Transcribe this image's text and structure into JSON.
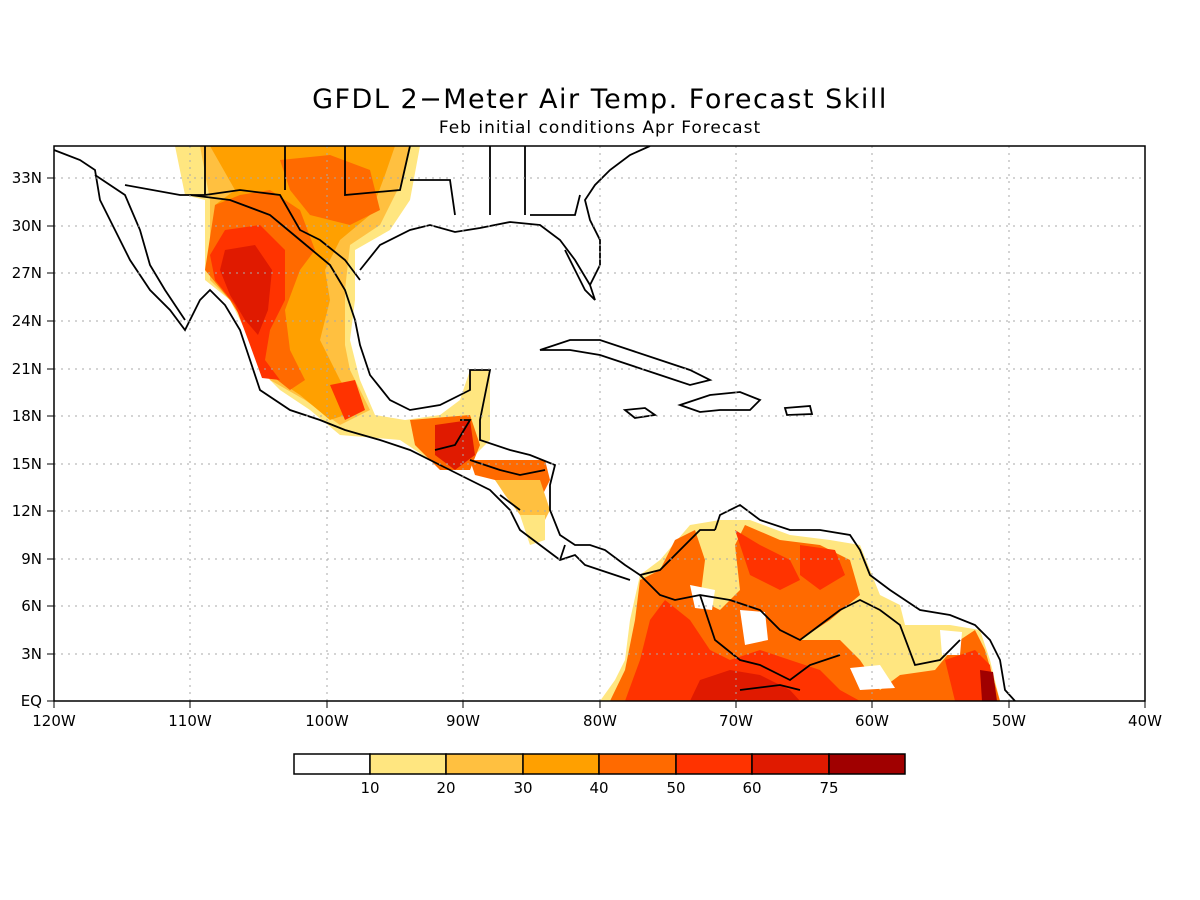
{
  "map": {
    "title": "GFDL 2−Meter Air Temp. Forecast Skill",
    "subtitle": "Feb initial conditions  Apr Forecast",
    "lon_labels": [
      "120W",
      "110W",
      "100W",
      "90W",
      "80W",
      "70W",
      "60W",
      "50W",
      "40W"
    ],
    "lat_labels": [
      "EQ",
      "3N",
      "6N",
      "9N",
      "12N",
      "15N",
      "18N",
      "21N",
      "24N",
      "27N",
      "30N",
      "33N"
    ],
    "legend": {
      "labels": [
        "10",
        "20",
        "30",
        "40",
        "50",
        "60",
        "75"
      ],
      "colors": [
        "#ffffff",
        "#ffe680",
        "#ffc040",
        "#ffa000",
        "#ff6a00",
        "#ff3300",
        "#e01a00",
        "#a00000"
      ]
    },
    "region": {
      "lon_min": -120,
      "lon_max": -40,
      "lat_min": 0,
      "lat_max": 35
    }
  }
}
